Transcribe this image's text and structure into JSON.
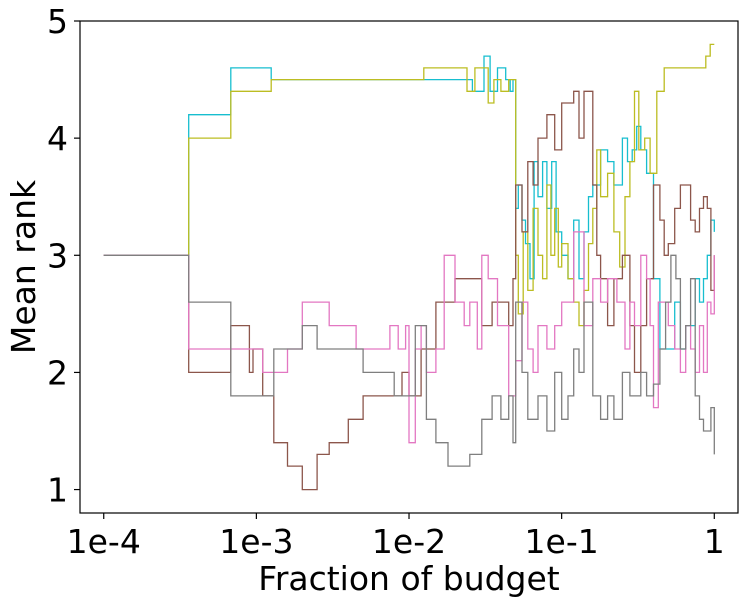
{
  "chart_data": {
    "type": "line",
    "title": "",
    "xlabel": "Fraction of budget",
    "ylabel": "Mean rank",
    "xscale": "log",
    "xlim": [
      6.99e-05,
      1.43
    ],
    "ylim": [
      0.8,
      5.0
    ],
    "xticks": [
      {
        "value": 0.0001,
        "label": "1e-4"
      },
      {
        "value": 0.001,
        "label": "1e-3"
      },
      {
        "value": 0.01,
        "label": "1e-2"
      },
      {
        "value": 0.1,
        "label": "1e-1"
      },
      {
        "value": 1,
        "label": "1"
      }
    ],
    "yticks": [
      {
        "value": 1,
        "label": "1"
      },
      {
        "value": 2,
        "label": "2"
      },
      {
        "value": 3,
        "label": "3"
      },
      {
        "value": 4,
        "label": "4"
      },
      {
        "value": 5,
        "label": "5"
      }
    ],
    "grid": false,
    "legend": "none",
    "series": [
      {
        "name": "cyan",
        "color": "#17becf",
        "x": [
          0.0001,
          0.00035,
          0.00036,
          0.00065,
          0.00068,
          0.0012,
          0.00125,
          0.025,
          0.026,
          0.03,
          0.031,
          0.033,
          0.034,
          0.037,
          0.038,
          0.042,
          0.043,
          0.045,
          0.046,
          0.048,
          0.05,
          0.052,
          0.055,
          0.058,
          0.062,
          0.066,
          0.07,
          0.075,
          0.08,
          0.086,
          0.092,
          0.1,
          0.11,
          0.12,
          0.13,
          0.14,
          0.15,
          0.16,
          0.18,
          0.2,
          0.22,
          0.25,
          0.27,
          0.29,
          0.31,
          0.33,
          0.36,
          0.4,
          0.44,
          0.5,
          0.55,
          0.6,
          0.65,
          0.7,
          0.75,
          0.8,
          0.85,
          0.9,
          0.95,
          1.0
        ],
        "y": [
          3.0,
          3.0,
          4.2,
          4.2,
          4.6,
          4.6,
          4.5,
          4.5,
          4.4,
          4.4,
          4.7,
          4.7,
          4.4,
          4.4,
          4.6,
          4.6,
          4.5,
          4.5,
          4.4,
          4.5,
          3.4,
          3.6,
          3.3,
          3.1,
          2.8,
          3.8,
          3.5,
          3.8,
          3.4,
          3.8,
          3.2,
          3.0,
          2.8,
          3.3,
          2.8,
          3.2,
          3.5,
          3.6,
          3.9,
          3.8,
          3.6,
          4.0,
          3.8,
          3.9,
          4.1,
          3.9,
          3.7,
          2.8,
          2.2,
          2.2,
          2.6,
          2.2,
          2.4,
          2.4,
          2.8,
          2.6,
          2.8,
          3.0,
          3.3,
          3.2
        ]
      },
      {
        "name": "olive",
        "color": "#bcbd22",
        "x": [
          0.0001,
          0.00035,
          0.00036,
          0.00065,
          0.00068,
          0.0012,
          0.00125,
          0.012,
          0.0125,
          0.022,
          0.024,
          0.027,
          0.03,
          0.033,
          0.036,
          0.04,
          0.045,
          0.05,
          0.052,
          0.056,
          0.06,
          0.065,
          0.07,
          0.075,
          0.08,
          0.085,
          0.09,
          0.095,
          0.1,
          0.11,
          0.12,
          0.13,
          0.14,
          0.15,
          0.16,
          0.17,
          0.18,
          0.2,
          0.22,
          0.24,
          0.26,
          0.28,
          0.3,
          0.32,
          0.35,
          0.38,
          0.42,
          0.47,
          0.52,
          0.58,
          0.65,
          0.72,
          0.8,
          0.88,
          0.94,
          1.0
        ],
        "y": [
          3.0,
          3.0,
          4.0,
          4.0,
          4.4,
          4.4,
          4.5,
          4.5,
          4.6,
          4.6,
          4.4,
          4.6,
          4.6,
          4.3,
          4.5,
          4.4,
          4.5,
          3.0,
          2.5,
          3.2,
          2.7,
          3.4,
          3.0,
          2.8,
          3.6,
          3.0,
          3.4,
          2.9,
          3.1,
          2.8,
          2.6,
          2.4,
          2.7,
          3.1,
          3.4,
          3.9,
          3.5,
          3.7,
          3.2,
          2.9,
          3.5,
          3.8,
          4.4,
          3.9,
          4.0,
          3.7,
          4.4,
          4.6,
          4.6,
          4.6,
          4.6,
          4.6,
          4.6,
          4.7,
          4.8,
          4.8
        ]
      },
      {
        "name": "brown",
        "color": "#8c564b",
        "x": [
          0.0001,
          0.00035,
          0.00036,
          0.00065,
          0.00068,
          0.0009,
          0.00095,
          0.0011,
          0.0013,
          0.0016,
          0.002,
          0.0022,
          0.0025,
          0.003,
          0.004,
          0.0045,
          0.005,
          0.008,
          0.009,
          0.01,
          0.012,
          0.015,
          0.02,
          0.025,
          0.03,
          0.035,
          0.04,
          0.045,
          0.048,
          0.05,
          0.055,
          0.06,
          0.065,
          0.07,
          0.08,
          0.09,
          0.1,
          0.11,
          0.12,
          0.13,
          0.14,
          0.15,
          0.16,
          0.17,
          0.18,
          0.2,
          0.22,
          0.25,
          0.28,
          0.3,
          0.33,
          0.36,
          0.4,
          0.44,
          0.47,
          0.5,
          0.55,
          0.6,
          0.65,
          0.7,
          0.75,
          0.8,
          0.85,
          0.9,
          0.95,
          1.0
        ],
        "y": [
          3.0,
          3.0,
          2.0,
          2.0,
          2.4,
          2.0,
          2.2,
          1.8,
          1.4,
          1.2,
          1.0,
          1.0,
          1.3,
          1.4,
          1.6,
          1.6,
          1.8,
          1.8,
          2.0,
          1.8,
          2.2,
          2.6,
          2.8,
          2.8,
          2.4,
          2.6,
          2.6,
          2.4,
          2.8,
          3.6,
          3.2,
          3.8,
          3.6,
          4.0,
          4.2,
          3.9,
          4.3,
          4.3,
          4.4,
          4.0,
          4.4,
          4.4,
          3.6,
          3.0,
          2.8,
          2.4,
          2.8,
          3.0,
          2.4,
          2.0,
          2.4,
          2.8,
          3.6,
          3.3,
          3.0,
          3.1,
          3.4,
          3.6,
          3.6,
          3.3,
          3.2,
          3.4,
          3.5,
          3.4,
          2.7,
          3.0
        ]
      },
      {
        "name": "pink",
        "color": "#e377c2",
        "x": [
          0.0001,
          0.00035,
          0.00036,
          0.00065,
          0.0011,
          0.0016,
          0.002,
          0.003,
          0.0045,
          0.0065,
          0.0075,
          0.0085,
          0.0095,
          0.01,
          0.011,
          0.012,
          0.013,
          0.015,
          0.017,
          0.02,
          0.023,
          0.025,
          0.028,
          0.03,
          0.033,
          0.038,
          0.045,
          0.05,
          0.055,
          0.06,
          0.065,
          0.07,
          0.08,
          0.09,
          0.1,
          0.12,
          0.14,
          0.16,
          0.18,
          0.2,
          0.23,
          0.26,
          0.28,
          0.3,
          0.33,
          0.36,
          0.38,
          0.4,
          0.43,
          0.47,
          0.5,
          0.55,
          0.6,
          0.65,
          0.7,
          0.75,
          0.8,
          0.85,
          0.9,
          0.95,
          1.0
        ],
        "y": [
          3.0,
          3.0,
          2.2,
          2.2,
          2.0,
          2.2,
          2.6,
          2.4,
          2.2,
          2.2,
          2.4,
          2.2,
          2.4,
          1.4,
          2.2,
          2.4,
          2.0,
          2.2,
          3.0,
          2.6,
          2.4,
          2.6,
          2.2,
          3.0,
          2.8,
          2.4,
          1.8,
          2.1,
          2.6,
          2.2,
          2.0,
          2.4,
          2.2,
          2.4,
          2.6,
          3.2,
          2.4,
          2.8,
          2.6,
          2.8,
          2.6,
          2.2,
          2.6,
          2.4,
          3.0,
          2.8,
          2.4,
          1.7,
          2.6,
          2.6,
          2.4,
          2.2,
          2.0,
          2.4,
          2.2,
          2.0,
          2.4,
          2.0,
          2.6,
          2.5,
          3.0
        ]
      },
      {
        "name": "gray",
        "color": "#7f7f7f",
        "x": [
          0.0001,
          0.00035,
          0.00036,
          0.00065,
          0.00068,
          0.0012,
          0.0013,
          0.0016,
          0.002,
          0.0025,
          0.003,
          0.005,
          0.008,
          0.01,
          0.011,
          0.013,
          0.015,
          0.018,
          0.02,
          0.025,
          0.03,
          0.035,
          0.04,
          0.045,
          0.048,
          0.05,
          0.055,
          0.06,
          0.07,
          0.08,
          0.09,
          0.1,
          0.11,
          0.12,
          0.13,
          0.14,
          0.16,
          0.18,
          0.2,
          0.22,
          0.25,
          0.28,
          0.3,
          0.33,
          0.36,
          0.4,
          0.44,
          0.48,
          0.52,
          0.56,
          0.6,
          0.65,
          0.7,
          0.75,
          0.8,
          0.85,
          0.9,
          0.95,
          1.0
        ],
        "y": [
          3.0,
          3.0,
          2.6,
          2.6,
          1.8,
          1.8,
          2.2,
          2.2,
          2.4,
          2.2,
          2.2,
          2.0,
          1.8,
          1.8,
          2.4,
          1.6,
          1.4,
          1.2,
          1.2,
          1.3,
          1.6,
          1.8,
          1.6,
          1.8,
          1.4,
          2.6,
          2.0,
          1.6,
          1.8,
          1.5,
          2.0,
          1.6,
          1.8,
          2.2,
          2.0,
          2.6,
          1.8,
          1.6,
          1.8,
          1.6,
          2.0,
          1.8,
          1.8,
          2.0,
          1.8,
          1.9,
          2.2,
          2.6,
          3.0,
          2.8,
          2.2,
          2.4,
          2.8,
          1.8,
          1.6,
          1.5,
          1.5,
          1.7,
          1.3
        ]
      }
    ]
  }
}
